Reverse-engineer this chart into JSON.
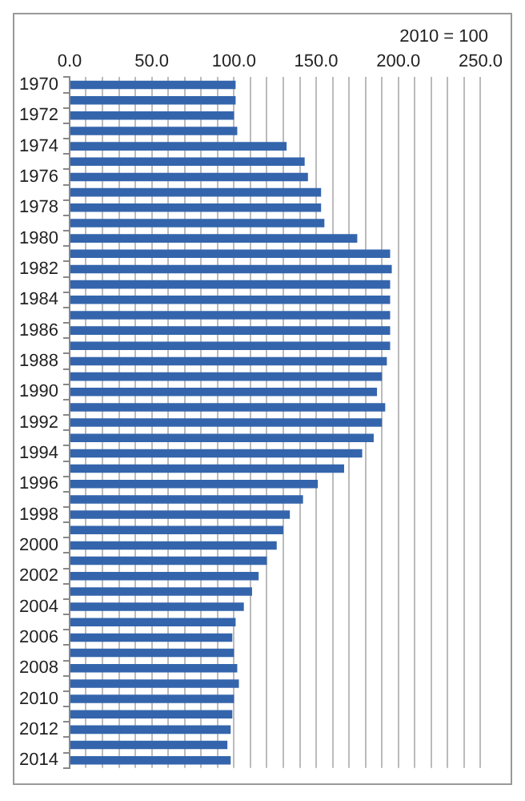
{
  "chart_data": {
    "type": "bar",
    "orientation": "horizontal",
    "annotations": [
      "2010 = 100"
    ],
    "categories": [
      "1970",
      null,
      "1972",
      null,
      "1974",
      null,
      "1976",
      null,
      "1978",
      null,
      "1980",
      null,
      "1982",
      null,
      "1984",
      null,
      "1986",
      null,
      "1988",
      null,
      "1990",
      null,
      "1992",
      null,
      "1994",
      null,
      "1996",
      null,
      "1998",
      null,
      "2000",
      null,
      "2002",
      null,
      "2004",
      null,
      "2006",
      null,
      "2008",
      null,
      "2010",
      null,
      "2012",
      null,
      "2014"
    ],
    "values": [
      101,
      101,
      100,
      102,
      132,
      143,
      145,
      153,
      153,
      155,
      175,
      195,
      196,
      195,
      195,
      195,
      195,
      195,
      193,
      190,
      187,
      192,
      190,
      185,
      178,
      167,
      151,
      142,
      134,
      130,
      126,
      120,
      115,
      111,
      106,
      101,
      99,
      100,
      102,
      103,
      100,
      99,
      98,
      96,
      98
    ],
    "color": "#3465ac",
    "xlim": [
      0,
      250
    ],
    "xticks": [
      {
        "value": 0,
        "label": "0.0"
      },
      {
        "value": 10,
        "label": null
      },
      {
        "value": 20,
        "label": null
      },
      {
        "value": 30,
        "label": null
      },
      {
        "value": 40,
        "label": null
      },
      {
        "value": 50,
        "label": "50.0"
      },
      {
        "value": 60,
        "label": null
      },
      {
        "value": 70,
        "label": null
      },
      {
        "value": 80,
        "label": null
      },
      {
        "value": 90,
        "label": null
      },
      {
        "value": 100,
        "label": "100.0"
      },
      {
        "value": 110,
        "label": null
      },
      {
        "value": 120,
        "label": null
      },
      {
        "value": 130,
        "label": null
      },
      {
        "value": 140,
        "label": null
      },
      {
        "value": 150,
        "label": "150.0"
      },
      {
        "value": 160,
        "label": null
      },
      {
        "value": 170,
        "label": null
      },
      {
        "value": 180,
        "label": null
      },
      {
        "value": 190,
        "label": null
      },
      {
        "value": 200,
        "label": "200.0"
      },
      {
        "value": 210,
        "label": null
      },
      {
        "value": 220,
        "label": null
      },
      {
        "value": 230,
        "label": null
      },
      {
        "value": 240,
        "label": null
      },
      {
        "value": 250,
        "label": "250.0"
      }
    ],
    "grid": "x"
  }
}
